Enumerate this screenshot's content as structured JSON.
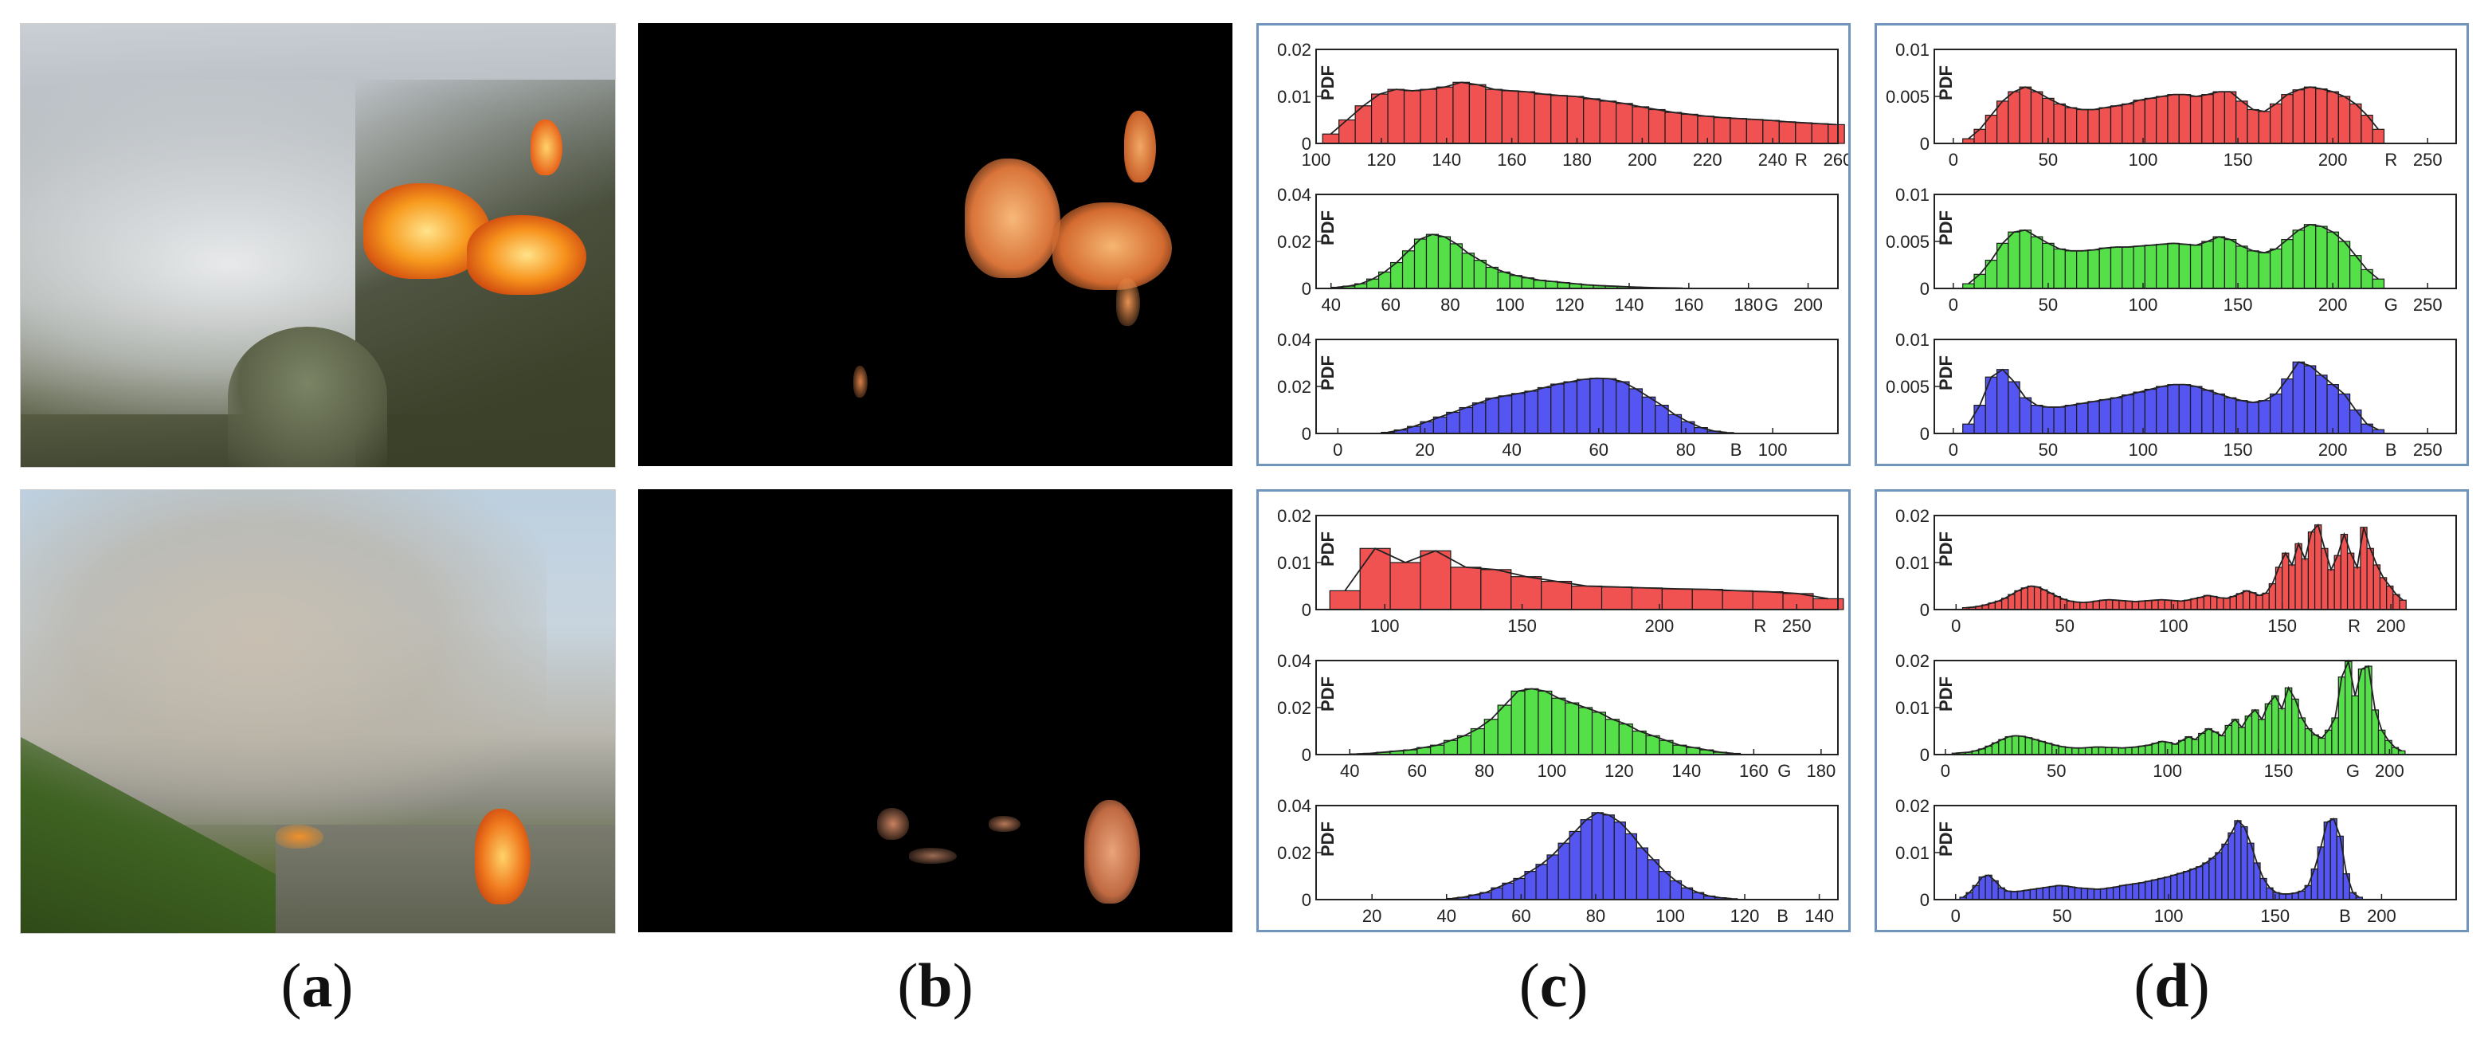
{
  "captions": {
    "a": "a",
    "b": "b",
    "c": "c",
    "d": "d"
  },
  "colors": {
    "red": "#f05252",
    "green": "#55e04a",
    "blue": "#5555f2",
    "frame": "#6f95bd"
  },
  "chart_data": [
    {
      "panel": "c",
      "row": "top",
      "channel": "R",
      "type": "bar",
      "ylabel": "PDF",
      "xlabel": "R",
      "xlim": [
        100,
        260
      ],
      "ylim": [
        0,
        0.02
      ],
      "xticks": [
        100,
        120,
        140,
        160,
        180,
        200,
        220,
        240,
        260
      ],
      "yticks": [
        0,
        0.01,
        0.02
      ],
      "bin_start": 102,
      "bin_width": 5,
      "values": [
        0.002,
        0.005,
        0.008,
        0.0105,
        0.0115,
        0.0112,
        0.0115,
        0.012,
        0.013,
        0.0125,
        0.0115,
        0.0112,
        0.011,
        0.0105,
        0.0102,
        0.01,
        0.0095,
        0.009,
        0.0085,
        0.0078,
        0.0072,
        0.0066,
        0.0062,
        0.0058,
        0.0055,
        0.0053,
        0.0051,
        0.0049,
        0.0046,
        0.0044,
        0.0042,
        0.004
      ]
    },
    {
      "panel": "c",
      "row": "top",
      "channel": "G",
      "type": "bar",
      "ylabel": "PDF",
      "xlabel": "G",
      "xlim": [
        35,
        210
      ],
      "ylim": [
        0,
        0.04
      ],
      "xticks": [
        40,
        60,
        80,
        100,
        120,
        140,
        160,
        180,
        200
      ],
      "yticks": [
        0,
        0.02,
        0.04
      ],
      "bin_start": 40,
      "bin_width": 4,
      "values": [
        0.0005,
        0.001,
        0.002,
        0.004,
        0.007,
        0.011,
        0.016,
        0.021,
        0.023,
        0.022,
        0.019,
        0.015,
        0.012,
        0.009,
        0.007,
        0.0055,
        0.0045,
        0.0035,
        0.003,
        0.0025,
        0.002,
        0.0015,
        0.0012,
        0.001,
        0.0008,
        0.0006,
        0.0004,
        0.0003,
        0.0002,
        0.0001
      ]
    },
    {
      "panel": "c",
      "row": "top",
      "channel": "B",
      "type": "bar",
      "ylabel": "PDF",
      "xlabel": "B",
      "xlim": [
        -5,
        115
      ],
      "ylim": [
        0,
        0.04
      ],
      "xticks": [
        0,
        20,
        40,
        60,
        80,
        100
      ],
      "yticks": [
        0,
        0.02,
        0.04
      ],
      "bin_start": 10,
      "bin_width": 3,
      "values": [
        0.0005,
        0.0015,
        0.003,
        0.005,
        0.007,
        0.009,
        0.011,
        0.013,
        0.015,
        0.016,
        0.017,
        0.018,
        0.0195,
        0.021,
        0.022,
        0.023,
        0.0235,
        0.0233,
        0.022,
        0.019,
        0.0155,
        0.012,
        0.008,
        0.005,
        0.0025,
        0.001,
        0.0004
      ]
    },
    {
      "panel": "c",
      "row": "bottom",
      "channel": "R",
      "type": "bar",
      "ylabel": "PDF",
      "xlabel": "R",
      "xlim": [
        75,
        265
      ],
      "ylim": [
        0,
        0.02
      ],
      "xticks": [
        100,
        150,
        200,
        250
      ],
      "yticks": [
        0,
        0.01,
        0.02
      ],
      "bin_start": 80,
      "bin_width": 11,
      "values": [
        0.004,
        0.013,
        0.01,
        0.0125,
        0.009,
        0.0085,
        0.007,
        0.006,
        0.005,
        0.0048,
        0.0046,
        0.0044,
        0.0043,
        0.004,
        0.0038,
        0.0034,
        0.0023
      ]
    },
    {
      "panel": "c",
      "row": "bottom",
      "channel": "G",
      "type": "bar",
      "ylabel": "PDF",
      "xlabel": "G",
      "xlim": [
        30,
        185
      ],
      "ylim": [
        0,
        0.04
      ],
      "xticks": [
        40,
        60,
        80,
        100,
        120,
        140,
        160,
        180
      ],
      "yticks": [
        0,
        0.02,
        0.04
      ],
      "bin_start": 40,
      "bin_width": 4,
      "values": [
        0.0003,
        0.0005,
        0.001,
        0.0015,
        0.002,
        0.003,
        0.004,
        0.006,
        0.008,
        0.011,
        0.015,
        0.021,
        0.027,
        0.028,
        0.027,
        0.024,
        0.022,
        0.02,
        0.018,
        0.015,
        0.013,
        0.01,
        0.008,
        0.006,
        0.004,
        0.003,
        0.002,
        0.001,
        0.0005
      ]
    },
    {
      "panel": "c",
      "row": "bottom",
      "channel": "B",
      "type": "bar",
      "ylabel": "PDF",
      "xlabel": "B",
      "xlim": [
        5,
        145
      ],
      "ylim": [
        0,
        0.04
      ],
      "xticks": [
        20,
        40,
        60,
        80,
        100,
        120,
        140
      ],
      "yticks": [
        0,
        0.02,
        0.04
      ],
      "bin_start": 40,
      "bin_width": 3,
      "values": [
        0.0005,
        0.001,
        0.002,
        0.003,
        0.005,
        0.007,
        0.009,
        0.012,
        0.015,
        0.019,
        0.024,
        0.029,
        0.034,
        0.037,
        0.036,
        0.033,
        0.028,
        0.022,
        0.017,
        0.012,
        0.008,
        0.005,
        0.003,
        0.0015,
        0.0008,
        0.0004
      ]
    },
    {
      "panel": "d",
      "row": "top",
      "channel": "R",
      "type": "bar",
      "ylabel": "PDF",
      "xlabel": "R",
      "xlim": [
        -10,
        265
      ],
      "ylim": [
        0,
        0.01
      ],
      "xticks": [
        0,
        50,
        100,
        150,
        200,
        250
      ],
      "yticks": [
        0,
        0.005,
        0.01
      ],
      "bin_start": 5,
      "bin_width": 6,
      "values": [
        0.0005,
        0.0015,
        0.003,
        0.0045,
        0.0055,
        0.006,
        0.0055,
        0.0048,
        0.0042,
        0.0038,
        0.0036,
        0.0036,
        0.0038,
        0.004,
        0.0042,
        0.0046,
        0.0048,
        0.005,
        0.0052,
        0.0052,
        0.005,
        0.0052,
        0.0055,
        0.0055,
        0.0045,
        0.0036,
        0.0034,
        0.0042,
        0.0052,
        0.0057,
        0.006,
        0.0058,
        0.0055,
        0.005,
        0.0042,
        0.003,
        0.0015
      ]
    },
    {
      "panel": "d",
      "row": "top",
      "channel": "G",
      "type": "bar",
      "ylabel": "PDF",
      "xlabel": "G",
      "xlim": [
        -10,
        265
      ],
      "ylim": [
        0,
        0.01
      ],
      "xticks": [
        0,
        50,
        100,
        150,
        200,
        250
      ],
      "yticks": [
        0,
        0.005,
        0.01
      ],
      "bin_start": 5,
      "bin_width": 6,
      "values": [
        0.0005,
        0.0015,
        0.003,
        0.0048,
        0.006,
        0.0062,
        0.0055,
        0.0048,
        0.0042,
        0.004,
        0.004,
        0.0041,
        0.0043,
        0.0044,
        0.0044,
        0.0045,
        0.0046,
        0.0047,
        0.0048,
        0.0047,
        0.0046,
        0.005,
        0.0055,
        0.0052,
        0.0045,
        0.004,
        0.0038,
        0.0042,
        0.0052,
        0.0062,
        0.0068,
        0.0066,
        0.006,
        0.005,
        0.0035,
        0.002,
        0.001
      ]
    },
    {
      "panel": "d",
      "row": "top",
      "channel": "B",
      "type": "bar",
      "ylabel": "PDF",
      "xlabel": "B",
      "xlim": [
        -10,
        265
      ],
      "ylim": [
        0,
        0.01
      ],
      "xticks": [
        0,
        50,
        100,
        150,
        200,
        250
      ],
      "yticks": [
        0,
        0.005,
        0.01
      ],
      "bin_start": 5,
      "bin_width": 6,
      "values": [
        0.001,
        0.003,
        0.006,
        0.0068,
        0.0055,
        0.0038,
        0.003,
        0.0028,
        0.0028,
        0.003,
        0.0032,
        0.0034,
        0.0036,
        0.0038,
        0.0041,
        0.0044,
        0.0047,
        0.005,
        0.0052,
        0.0052,
        0.005,
        0.0046,
        0.0042,
        0.0038,
        0.0035,
        0.0033,
        0.0035,
        0.0042,
        0.0058,
        0.0076,
        0.0072,
        0.0062,
        0.0052,
        0.0042,
        0.0025,
        0.001,
        0.0004
      ]
    },
    {
      "panel": "d",
      "row": "bottom",
      "channel": "R",
      "type": "bar",
      "ylabel": "PDF",
      "xlabel": "R",
      "xlim": [
        -10,
        230
      ],
      "ylim": [
        0,
        0.02
      ],
      "xticks": [
        0,
        50,
        100,
        150,
        200
      ],
      "yticks": [
        0,
        0.01,
        0.02
      ],
      "bin_start": 3,
      "bin_width": 3,
      "values": [
        0.0004,
        0.0005,
        0.0007,
        0.001,
        0.0014,
        0.0018,
        0.0024,
        0.0032,
        0.004,
        0.0046,
        0.005,
        0.0048,
        0.0042,
        0.0035,
        0.0028,
        0.0022,
        0.0018,
        0.0016,
        0.0015,
        0.0016,
        0.0018,
        0.002,
        0.0021,
        0.002,
        0.0019,
        0.0018,
        0.0017,
        0.0018,
        0.0019,
        0.002,
        0.0021,
        0.002,
        0.0019,
        0.0018,
        0.002,
        0.0023,
        0.0026,
        0.003,
        0.0028,
        0.0025,
        0.0024,
        0.0028,
        0.0034,
        0.004,
        0.0036,
        0.003,
        0.0035,
        0.0055,
        0.009,
        0.012,
        0.0095,
        0.014,
        0.0108,
        0.0165,
        0.018,
        0.013,
        0.0085,
        0.0115,
        0.016,
        0.012,
        0.009,
        0.0175,
        0.013,
        0.0095,
        0.0068,
        0.005,
        0.0032,
        0.002
      ]
    },
    {
      "panel": "d",
      "row": "bottom",
      "channel": "G",
      "type": "bar",
      "ylabel": "PDF",
      "xlabel": "G",
      "xlim": [
        -5,
        230
      ],
      "ylim": [
        0,
        0.02
      ],
      "xticks": [
        0,
        50,
        100,
        150,
        200
      ],
      "yticks": [
        0,
        0.01,
        0.02
      ],
      "bin_start": 3,
      "bin_width": 3,
      "values": [
        0.0003,
        0.0004,
        0.0005,
        0.0008,
        0.0012,
        0.0018,
        0.0025,
        0.0032,
        0.0038,
        0.004,
        0.0039,
        0.0036,
        0.0032,
        0.0028,
        0.0024,
        0.002,
        0.0017,
        0.0015,
        0.0014,
        0.0014,
        0.0015,
        0.0016,
        0.0016,
        0.0015,
        0.0015,
        0.0014,
        0.0015,
        0.0016,
        0.0018,
        0.002,
        0.0024,
        0.0028,
        0.0026,
        0.0022,
        0.003,
        0.0038,
        0.0032,
        0.0045,
        0.0055,
        0.0048,
        0.004,
        0.0062,
        0.0075,
        0.0058,
        0.0082,
        0.0095,
        0.0075,
        0.0108,
        0.0125,
        0.0098,
        0.0142,
        0.0118,
        0.0078,
        0.0055,
        0.0042,
        0.0035,
        0.0052,
        0.0078,
        0.0165,
        0.0198,
        0.0125,
        0.0182,
        0.0188,
        0.0095,
        0.0052,
        0.003,
        0.0015,
        0.0008
      ]
    },
    {
      "panel": "d",
      "row": "bottom",
      "channel": "B",
      "type": "bar",
      "ylabel": "PDF",
      "xlabel": "B",
      "xlim": [
        -10,
        235
      ],
      "ylim": [
        0,
        0.02
      ],
      "xticks": [
        0,
        50,
        100,
        150,
        200
      ],
      "yticks": [
        0,
        0.01,
        0.02
      ],
      "bin_start": 2,
      "bin_width": 3,
      "values": [
        0.0005,
        0.0015,
        0.003,
        0.0048,
        0.0052,
        0.004,
        0.0025,
        0.0018,
        0.0017,
        0.0018,
        0.002,
        0.0022,
        0.0024,
        0.0026,
        0.0028,
        0.003,
        0.0029,
        0.0027,
        0.0025,
        0.0024,
        0.0023,
        0.0022,
        0.0023,
        0.0025,
        0.0027,
        0.003,
        0.0032,
        0.0034,
        0.0036,
        0.0039,
        0.0042,
        0.0045,
        0.0048,
        0.0052,
        0.0056,
        0.006,
        0.0065,
        0.007,
        0.0078,
        0.0088,
        0.01,
        0.0118,
        0.0142,
        0.0168,
        0.0155,
        0.012,
        0.0078,
        0.0045,
        0.0025,
        0.0015,
        0.0012,
        0.0012,
        0.0014,
        0.0018,
        0.003,
        0.0065,
        0.0112,
        0.0165,
        0.0172,
        0.0135,
        0.0055,
        0.0015,
        0.0005
      ]
    }
  ]
}
